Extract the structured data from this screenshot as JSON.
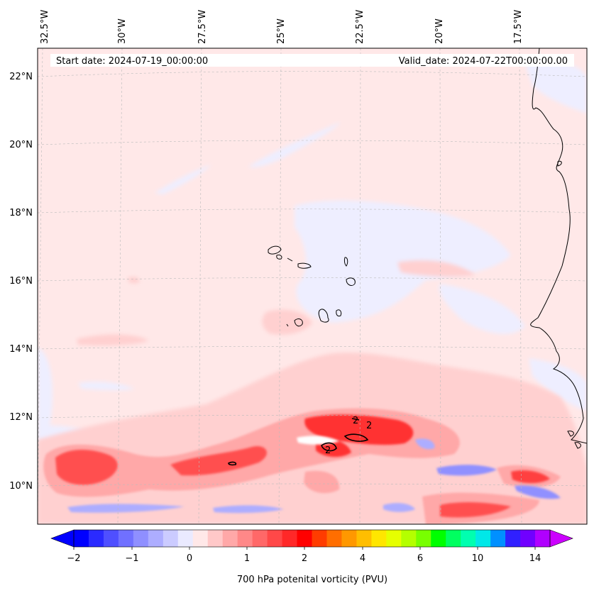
{
  "header": {
    "start_date": "Start date: 2024-07-19_00:00:00",
    "valid_date": "Valid_date: 2024-07-22T00:00:00.00"
  },
  "map": {
    "longitude_labels": [
      "32.5°W",
      "30°W",
      "27.5°W",
      "25°W",
      "22.5°W",
      "20°W",
      "17.5°W"
    ],
    "latitude_labels": [
      "22°N",
      "20°N",
      "18°N",
      "16°N",
      "14°N",
      "12°N",
      "10°N"
    ],
    "contour_labels": [
      "2",
      "2",
      "2"
    ]
  },
  "colorbar": {
    "title": "700 hPa potenital vorticity (PVU)",
    "tick_labels": [
      "−2",
      "−1",
      "0",
      "1",
      "2",
      "4",
      "6",
      "10",
      "14"
    ],
    "colors": [
      "#0000ff",
      "#2a2aff",
      "#4f4fff",
      "#7070ff",
      "#8f8fff",
      "#adadff",
      "#cbcbff",
      "#eaeaff",
      "#ffe8e8",
      "#ffc8c8",
      "#ffa8a8",
      "#ff8888",
      "#ff6868",
      "#ff4848",
      "#ff2828",
      "#ff0000",
      "#ff3c00",
      "#ff6e00",
      "#ff9800",
      "#ffbe00",
      "#ffe600",
      "#e6ff00",
      "#b4ff00",
      "#78ff00",
      "#00ff00",
      "#00ff60",
      "#00ffb0",
      "#00e8e8",
      "#0090ff",
      "#3020ff",
      "#7000ff",
      "#b000ff"
    ],
    "min_color": "#0000ff",
    "max_color": "#cc00ff"
  }
}
